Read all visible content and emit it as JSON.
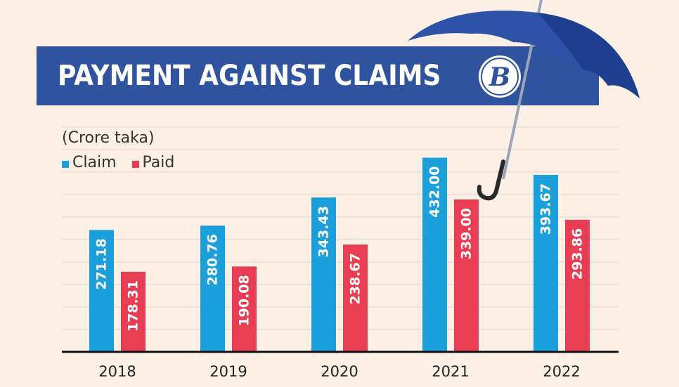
{
  "title": "PAYMENT AGAINST CLAIMS",
  "colors": {
    "banner": "#2f539f",
    "claim": "#1ba0dc",
    "paid": "#e83e54",
    "background": "#fcefe6"
  },
  "logo_icon": "b-logo-icon",
  "chart_data": {
    "type": "bar",
    "title": "PAYMENT AGAINST CLAIMS",
    "unit_label": "(Crore taka)",
    "categories": [
      "2018",
      "2019",
      "2020",
      "2021",
      "2022"
    ],
    "series": [
      {
        "name": "Claim",
        "values": [
          271.18,
          280.76,
          343.43,
          432.0,
          393.67
        ],
        "labels": [
          "271.18",
          "280.76",
          "343.43",
          "432.00",
          "393.67"
        ]
      },
      {
        "name": "Paid",
        "values": [
          178.31,
          190.08,
          238.67,
          339.0,
          293.86
        ],
        "labels": [
          "178.31",
          "190.08",
          "238.67",
          "339.00",
          "293.86"
        ]
      }
    ],
    "ylim": [
      0,
      500
    ],
    "grid": true,
    "legend_position": "top-left"
  }
}
